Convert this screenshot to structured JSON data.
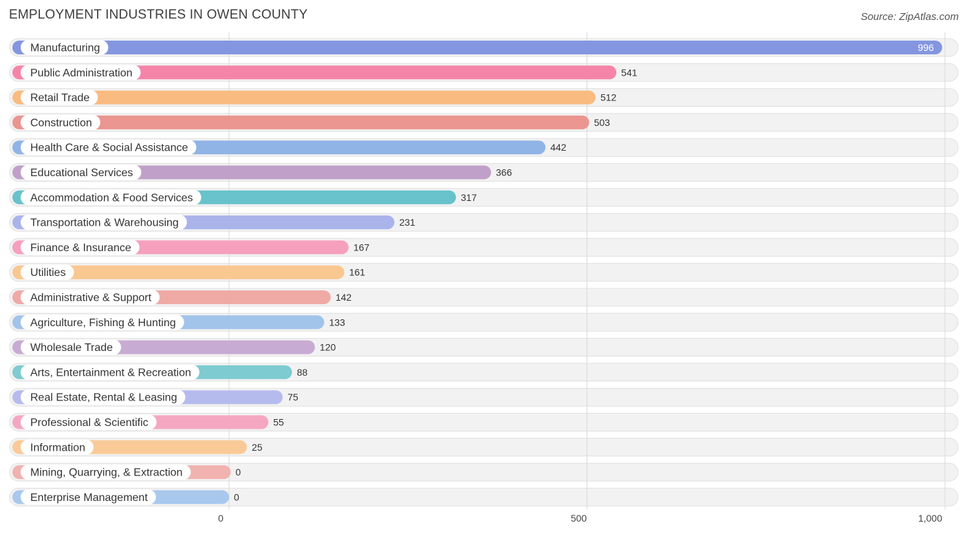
{
  "header": {
    "title": "EMPLOYMENT INDUSTRIES IN OWEN COUNTY",
    "source": "Source: ZipAtlas.com"
  },
  "chart_data": {
    "type": "bar",
    "orientation": "horizontal",
    "title": "EMPLOYMENT INDUSTRIES IN OWEN COUNTY",
    "xlabel": "",
    "ylabel": "",
    "xlim": [
      0,
      1000
    ],
    "ticks": [
      {
        "value": 0,
        "label": "0"
      },
      {
        "value": 500,
        "label": "500"
      },
      {
        "value": 1000,
        "label": "1,000"
      }
    ],
    "categories": [
      "Manufacturing",
      "Public Administration",
      "Retail Trade",
      "Construction",
      "Health Care & Social Assistance",
      "Educational Services",
      "Accommodation & Food Services",
      "Transportation & Warehousing",
      "Finance & Insurance",
      "Utilities",
      "Administrative & Support",
      "Agriculture, Fishing & Hunting",
      "Wholesale Trade",
      "Arts, Entertainment & Recreation",
      "Real Estate, Rental & Leasing",
      "Professional & Scientific",
      "Information",
      "Mining, Quarrying, & Extraction",
      "Enterprise Management"
    ],
    "values": [
      996,
      541,
      512,
      503,
      442,
      366,
      317,
      231,
      167,
      161,
      142,
      133,
      120,
      88,
      75,
      55,
      25,
      0,
      0
    ],
    "value_labels": [
      "996",
      "541",
      "512",
      "503",
      "442",
      "366",
      "317",
      "231",
      "167",
      "161",
      "142",
      "133",
      "120",
      "88",
      "75",
      "55",
      "25",
      "0",
      "0"
    ],
    "colors": [
      "#8496e0",
      "#f585a8",
      "#f9bb80",
      "#ea9590",
      "#8fb4e5",
      "#c0a0c8",
      "#67c2cc",
      "#aab4ea",
      "#f6a0bd",
      "#f9c891",
      "#efaaa6",
      "#a2c4ea",
      "#c8abd2",
      "#7ecbd2",
      "#b5bced",
      "#f5a7c2",
      "#f9ca98",
      "#f1b2b0",
      "#a8c8ee"
    ]
  }
}
